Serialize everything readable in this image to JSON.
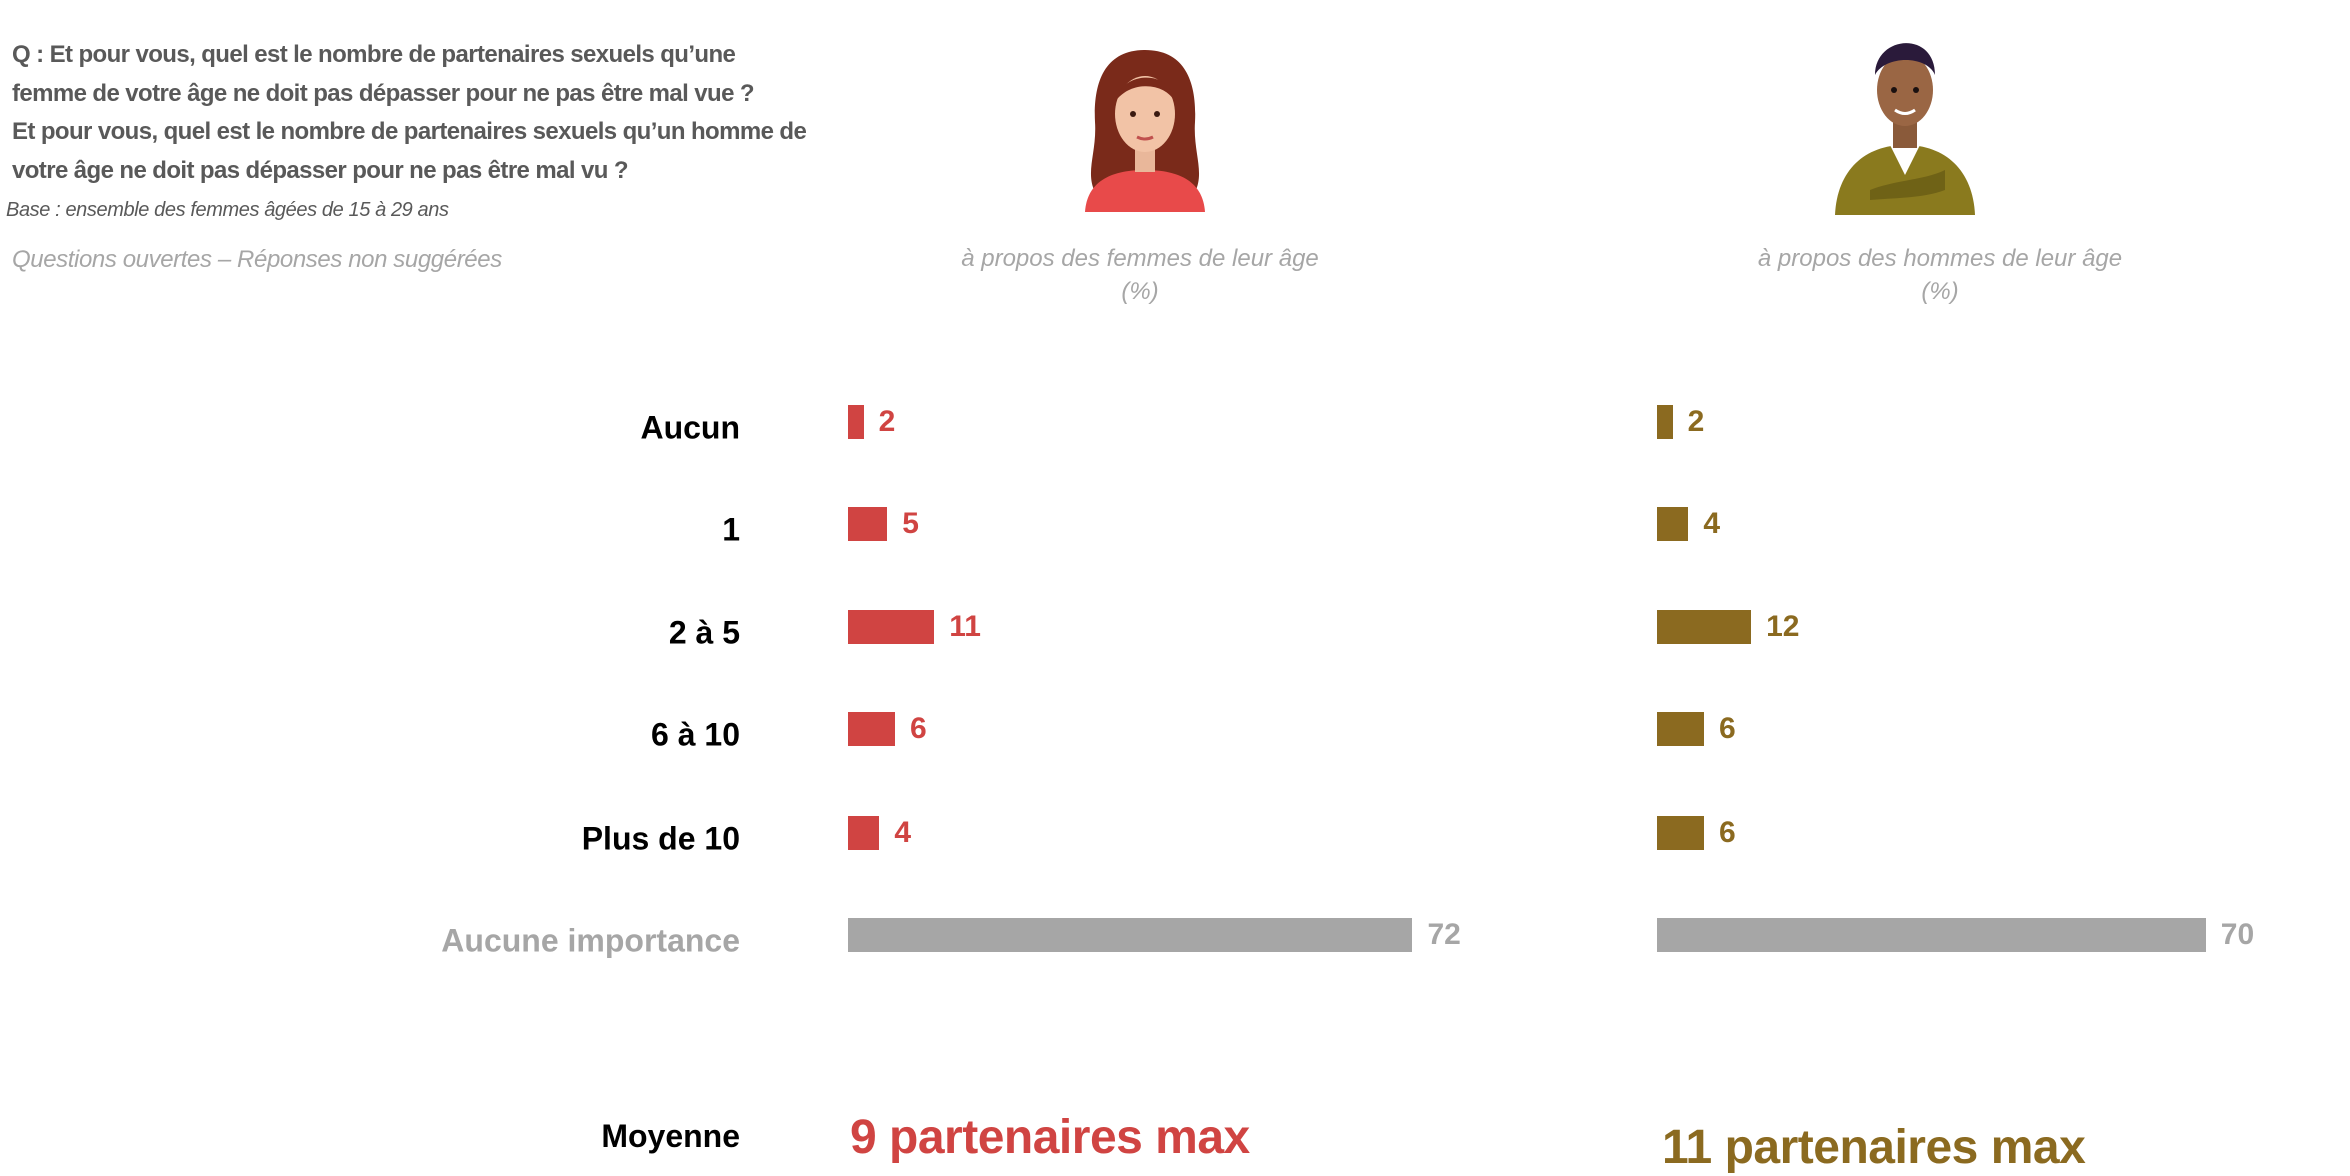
{
  "header": {
    "question_lines": [
      "Q : Et pour vous, quel est le nombre de partenaires sexuels qu’une",
      "femme de votre âge ne doit pas dépasser pour ne pas être mal vue ?",
      "Et pour vous, quel est le nombre de partenaires sexuels qu’un homme de",
      "votre âge ne doit pas dépasser pour ne pas être mal vu ?"
    ],
    "base": "Base : ensemble des femmes âgées de 15 à 29 ans",
    "note": "Questions ouvertes – Réponses non suggérées"
  },
  "chart_data": {
    "type": "bar",
    "orientation": "horizontal",
    "unit": "%",
    "categories": [
      "Aucun",
      "1",
      "2 à 5",
      "6 à 10",
      "Plus de 10",
      "Aucune importance"
    ],
    "series": [
      {
        "name": "à propos des femmes de leur âge",
        "unit_label": "(%)",
        "values": [
          2,
          5,
          11,
          6,
          4,
          72
        ],
        "color": "#d04442",
        "mean": "9 partenaires max"
      },
      {
        "name": "à propos des hommes de leur âge",
        "unit_label": "(%)",
        "values": [
          2,
          4,
          12,
          6,
          6,
          70
        ],
        "color": "#8b6a20",
        "mean": "11 partenaires max"
      }
    ],
    "muted_category_color": "#a6a6a6",
    "mean_label": "Moyenne",
    "xlim": [
      0,
      100
    ]
  }
}
